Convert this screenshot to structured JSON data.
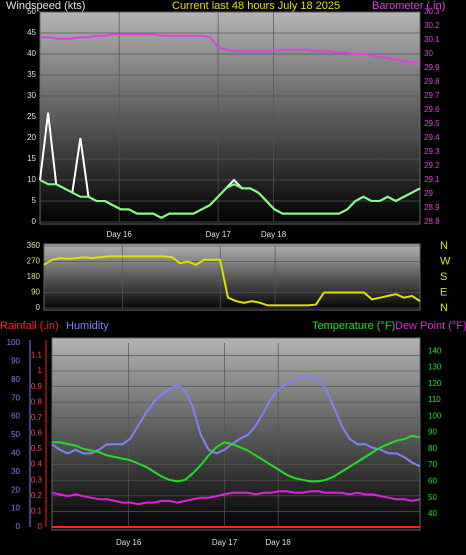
{
  "chart_data": [
    {
      "type": "line",
      "title": "Current last 48 hours July 18 2025",
      "xlim": [
        0,
        48
      ],
      "xticks": [
        {
          "value": 10,
          "label": "Day 16"
        },
        {
          "value": 22.5,
          "label": "Day 17"
        },
        {
          "value": 29.5,
          "label": "Day 18"
        }
      ],
      "ylim": [
        0,
        50
      ],
      "yticks": [
        0,
        5,
        10,
        15,
        20,
        25,
        30,
        35,
        40,
        45,
        50
      ],
      "y2lim": [
        28.8,
        30.3
      ],
      "y2ticks": [
        28.8,
        28.9,
        29,
        29.1,
        29.2,
        29.3,
        29.4,
        29.5,
        29.6,
        29.7,
        29.8,
        29.9,
        30,
        30.1,
        30.2,
        30.3
      ],
      "grid": true,
      "series": [
        {
          "color": "#ffffff",
          "values": [
            10,
            26,
            9,
            8,
            7,
            20,
            6,
            5,
            5,
            4,
            3,
            3,
            2,
            2,
            2,
            1,
            2,
            2,
            2,
            2,
            3,
            4,
            6,
            8,
            10,
            8,
            8,
            7,
            5,
            3,
            2,
            2,
            2,
            2,
            2,
            2,
            2,
            2,
            3,
            5,
            6,
            5,
            5,
            6,
            5,
            6,
            7,
            8
          ]
        },
        {
          "name": "Windspeed (kts)",
          "color": "#80ff80",
          "values": [
            10,
            9,
            9,
            8,
            7,
            6,
            6,
            5,
            5,
            4,
            3,
            3,
            2,
            2,
            2,
            1,
            2,
            2,
            2,
            2,
            3,
            4,
            6,
            8,
            9,
            8,
            8,
            7,
            5,
            3,
            2,
            2,
            2,
            2,
            2,
            2,
            2,
            2,
            3,
            5,
            6,
            5,
            5,
            6,
            5,
            6,
            7,
            8
          ]
        },
        {
          "name": "Barometer (.in)",
          "color": "#e040e0",
          "axis": "y2",
          "values": [
            30.12,
            30.12,
            30.11,
            30.11,
            30.11,
            30.12,
            30.12,
            30.13,
            30.13,
            30.14,
            30.14,
            30.14,
            30.14,
            30.14,
            30.14,
            30.13,
            30.13,
            30.13,
            30.13,
            30.13,
            30.13,
            30.12,
            30.05,
            30.03,
            30.02,
            30.02,
            30.02,
            30.02,
            30.02,
            30.02,
            30.03,
            30.03,
            30.03,
            30.03,
            30.02,
            30.02,
            30.02,
            30.01,
            30.01,
            30,
            30,
            29.99,
            29.98,
            29.97,
            29.96,
            29.95,
            29.94,
            29.93
          ]
        }
      ]
    },
    {
      "type": "line",
      "xlim": [
        0,
        48
      ],
      "xticks": [
        {
          "value": 10,
          "label": "Day 16"
        },
        {
          "value": 22.5,
          "label": "Day 17"
        },
        {
          "value": 29.5,
          "label": "Day 18"
        }
      ],
      "ylim": [
        0,
        360
      ],
      "yticks": [
        0,
        90,
        180,
        270,
        360
      ],
      "direction_labels": [
        "N",
        "E",
        "S",
        "W",
        "N"
      ],
      "grid": true,
      "series": [
        {
          "color": "#e0e000",
          "values": [
            250,
            280,
            290,
            285,
            290,
            295,
            290,
            295,
            300,
            300,
            300,
            300,
            300,
            300,
            300,
            300,
            295,
            260,
            270,
            250,
            280,
            280,
            280,
            60,
            40,
            30,
            40,
            30,
            15,
            15,
            15,
            15,
            15,
            15,
            20,
            90,
            90,
            90,
            90,
            90,
            90,
            50,
            60,
            70,
            80,
            60,
            70,
            40
          ]
        }
      ]
    },
    {
      "type": "line",
      "xlim": [
        0,
        48
      ],
      "xticks": [
        {
          "value": 10,
          "label": "Day 16"
        },
        {
          "value": 22.5,
          "label": "Day 17"
        },
        {
          "value": 29.5,
          "label": "Day 18"
        }
      ],
      "ylim": [
        0,
        1.18
      ],
      "yticks": [
        0,
        0.1,
        0.2,
        0.3,
        0.4,
        0.5,
        0.6,
        0.7,
        0.8,
        0.9,
        1,
        1.1
      ],
      "y3lim": [
        0,
        100
      ],
      "y3ticks": [
        0,
        10,
        20,
        30,
        40,
        50,
        60,
        70,
        80,
        90,
        100
      ],
      "y2lim": [
        32,
        145
      ],
      "y2ticks": [
        40,
        50,
        60,
        70,
        80,
        90,
        100,
        110,
        120,
        130,
        140
      ],
      "grid": true,
      "series": [
        {
          "name": "Rainfall (.in)",
          "color": "#ff2020",
          "values": [
            0,
            0,
            0,
            0,
            0,
            0,
            0,
            0,
            0,
            0,
            0,
            0,
            0,
            0,
            0,
            0,
            0,
            0,
            0,
            0,
            0,
            0,
            0,
            0,
            0,
            0,
            0,
            0,
            0,
            0,
            0,
            0,
            0,
            0,
            0,
            0,
            0,
            0,
            0,
            0,
            0,
            0,
            0,
            0,
            0,
            0,
            0,
            0
          ]
        },
        {
          "name": "Humidity",
          "color": "#8080ff",
          "axis": "y3",
          "values": [
            45,
            42,
            40,
            42,
            40,
            40,
            42,
            45,
            45,
            45,
            48,
            55,
            62,
            68,
            72,
            75,
            77,
            74,
            65,
            50,
            42,
            40,
            42,
            45,
            48,
            50,
            55,
            62,
            70,
            75,
            78,
            80,
            82,
            82,
            80,
            75,
            65,
            55,
            48,
            45,
            45,
            43,
            42,
            40,
            40,
            38,
            35,
            33
          ]
        },
        {
          "name": "Temperature (°F)",
          "color": "#20e020",
          "axis": "y2",
          "values": [
            84,
            84,
            83,
            82,
            80,
            79,
            78,
            76,
            75,
            74,
            73,
            71,
            69,
            66,
            63,
            61,
            60,
            61,
            65,
            70,
            76,
            81,
            84,
            83,
            81,
            79,
            76,
            73,
            70,
            67,
            64,
            62,
            61,
            60,
            60,
            61,
            63,
            66,
            69,
            72,
            75,
            78,
            81,
            83,
            85,
            86,
            88,
            87
          ]
        },
        {
          "name": "Dew Point (°F)",
          "color": "#e020e0",
          "axis": "y2",
          "values": [
            53,
            52,
            51,
            52,
            51,
            50,
            49,
            49,
            48,
            47,
            47,
            46,
            47,
            47,
            48,
            48,
            47,
            48,
            49,
            50,
            50,
            51,
            52,
            53,
            53,
            53,
            52,
            53,
            53,
            54,
            54,
            53,
            53,
            54,
            54,
            53,
            53,
            53,
            52,
            53,
            52,
            52,
            51,
            50,
            49,
            49,
            48,
            49
          ]
        }
      ]
    }
  ]
}
